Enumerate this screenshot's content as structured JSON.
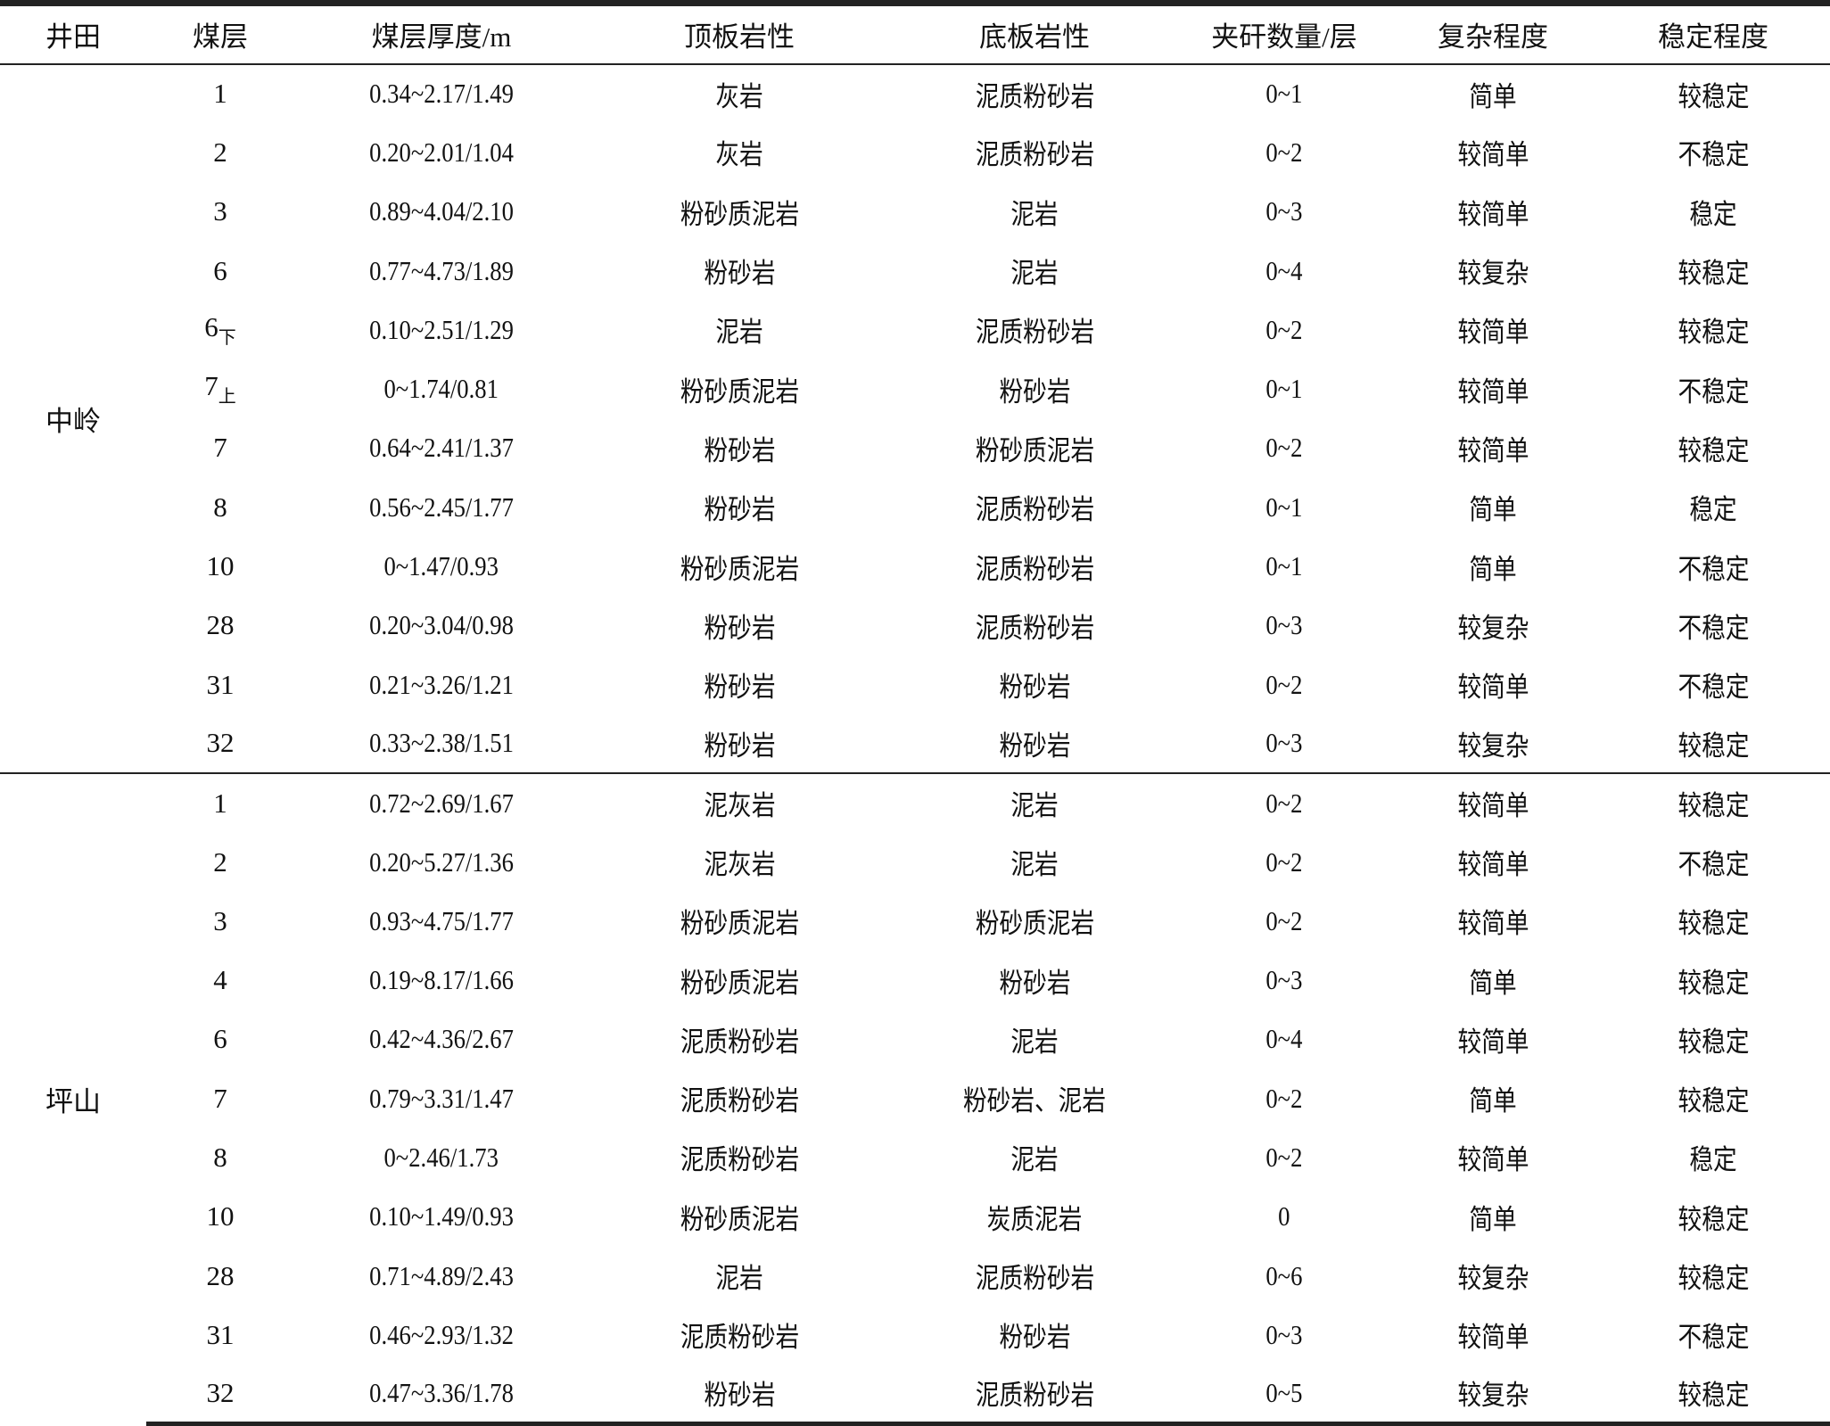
{
  "table": {
    "headers": [
      "井田",
      "煤层",
      "煤层厚度/m",
      "顶板岩性",
      "底板岩性",
      "夹矸数量/层",
      "复杂程度",
      "稳定程度"
    ],
    "groups": [
      {
        "field": "中岭",
        "rows": [
          {
            "seam": "1",
            "sub": "",
            "thickness": "0.34~2.17/1.49",
            "roof": "灰岩",
            "floor": "泥质粉砂岩",
            "gangue": "0~1",
            "complexity": "简单",
            "stability": "较稳定"
          },
          {
            "seam": "2",
            "sub": "",
            "thickness": "0.20~2.01/1.04",
            "roof": "灰岩",
            "floor": "泥质粉砂岩",
            "gangue": "0~2",
            "complexity": "较简单",
            "stability": "不稳定"
          },
          {
            "seam": "3",
            "sub": "",
            "thickness": "0.89~4.04/2.10",
            "roof": "粉砂质泥岩",
            "floor": "泥岩",
            "gangue": "0~3",
            "complexity": "较简单",
            "stability": "稳定"
          },
          {
            "seam": "6",
            "sub": "",
            "thickness": "0.77~4.73/1.89",
            "roof": "粉砂岩",
            "floor": "泥岩",
            "gangue": "0~4",
            "complexity": "较复杂",
            "stability": "较稳定"
          },
          {
            "seam": "6",
            "sub": "下",
            "thickness": "0.10~2.51/1.29",
            "roof": "泥岩",
            "floor": "泥质粉砂岩",
            "gangue": "0~2",
            "complexity": "较简单",
            "stability": "较稳定"
          },
          {
            "seam": "7",
            "sub": "上",
            "thickness": "0~1.74/0.81",
            "roof": "粉砂质泥岩",
            "floor": "粉砂岩",
            "gangue": "0~1",
            "complexity": "较简单",
            "stability": "不稳定"
          },
          {
            "seam": "7",
            "sub": "",
            "thickness": "0.64~2.41/1.37",
            "roof": "粉砂岩",
            "floor": "粉砂质泥岩",
            "gangue": "0~2",
            "complexity": "较简单",
            "stability": "较稳定"
          },
          {
            "seam": "8",
            "sub": "",
            "thickness": "0.56~2.45/1.77",
            "roof": "粉砂岩",
            "floor": "泥质粉砂岩",
            "gangue": "0~1",
            "complexity": "简单",
            "stability": "稳定"
          },
          {
            "seam": "10",
            "sub": "",
            "thickness": "0~1.47/0.93",
            "roof": "粉砂质泥岩",
            "floor": "泥质粉砂岩",
            "gangue": "0~1",
            "complexity": "简单",
            "stability": "不稳定"
          },
          {
            "seam": "28",
            "sub": "",
            "thickness": "0.20~3.04/0.98",
            "roof": "粉砂岩",
            "floor": "泥质粉砂岩",
            "gangue": "0~3",
            "complexity": "较复杂",
            "stability": "不稳定"
          },
          {
            "seam": "31",
            "sub": "",
            "thickness": "0.21~3.26/1.21",
            "roof": "粉砂岩",
            "floor": "粉砂岩",
            "gangue": "0~2",
            "complexity": "较简单",
            "stability": "不稳定"
          },
          {
            "seam": "32",
            "sub": "",
            "thickness": "0.33~2.38/1.51",
            "roof": "粉砂岩",
            "floor": "粉砂岩",
            "gangue": "0~3",
            "complexity": "较复杂",
            "stability": "较稳定"
          }
        ]
      },
      {
        "field": "坪山",
        "rows": [
          {
            "seam": "1",
            "sub": "",
            "thickness": "0.72~2.69/1.67",
            "roof": "泥灰岩",
            "floor": "泥岩",
            "gangue": "0~2",
            "complexity": "较简单",
            "stability": "较稳定"
          },
          {
            "seam": "2",
            "sub": "",
            "thickness": "0.20~5.27/1.36",
            "roof": "泥灰岩",
            "floor": "泥岩",
            "gangue": "0~2",
            "complexity": "较简单",
            "stability": "不稳定"
          },
          {
            "seam": "3",
            "sub": "",
            "thickness": "0.93~4.75/1.77",
            "roof": "粉砂质泥岩",
            "floor": "粉砂质泥岩",
            "gangue": "0~2",
            "complexity": "较简单",
            "stability": "较稳定"
          },
          {
            "seam": "4",
            "sub": "",
            "thickness": "0.19~8.17/1.66",
            "roof": "粉砂质泥岩",
            "floor": "粉砂岩",
            "gangue": "0~3",
            "complexity": "简单",
            "stability": "较稳定"
          },
          {
            "seam": "6",
            "sub": "",
            "thickness": "0.42~4.36/2.67",
            "roof": "泥质粉砂岩",
            "floor": "泥岩",
            "gangue": "0~4",
            "complexity": "较简单",
            "stability": "较稳定"
          },
          {
            "seam": "7",
            "sub": "",
            "thickness": "0.79~3.31/1.47",
            "roof": "泥质粉砂岩",
            "floor": "粉砂岩、泥岩",
            "gangue": "0~2",
            "complexity": "简单",
            "stability": "较稳定"
          },
          {
            "seam": "8",
            "sub": "",
            "thickness": "0~2.46/1.73",
            "roof": "泥质粉砂岩",
            "floor": "泥岩",
            "gangue": "0~2",
            "complexity": "较简单",
            "stability": "稳定"
          },
          {
            "seam": "10",
            "sub": "",
            "thickness": "0.10~1.49/0.93",
            "roof": "粉砂质泥岩",
            "floor": "炭质泥岩",
            "gangue": "0",
            "complexity": "简单",
            "stability": "较稳定"
          },
          {
            "seam": "28",
            "sub": "",
            "thickness": "0.71~4.89/2.43",
            "roof": "泥岩",
            "floor": "泥质粉砂岩",
            "gangue": "0~6",
            "complexity": "较复杂",
            "stability": "较稳定"
          },
          {
            "seam": "31",
            "sub": "",
            "thickness": "0.46~2.93/1.32",
            "roof": "泥质粉砂岩",
            "floor": "粉砂岩",
            "gangue": "0~3",
            "complexity": "较简单",
            "stability": "不稳定"
          },
          {
            "seam": "32",
            "sub": "",
            "thickness": "0.47~3.36/1.78",
            "roof": "粉砂岩",
            "floor": "泥质粉砂岩",
            "gangue": "0~5",
            "complexity": "较复杂",
            "stability": "较稳定"
          }
        ]
      }
    ]
  }
}
